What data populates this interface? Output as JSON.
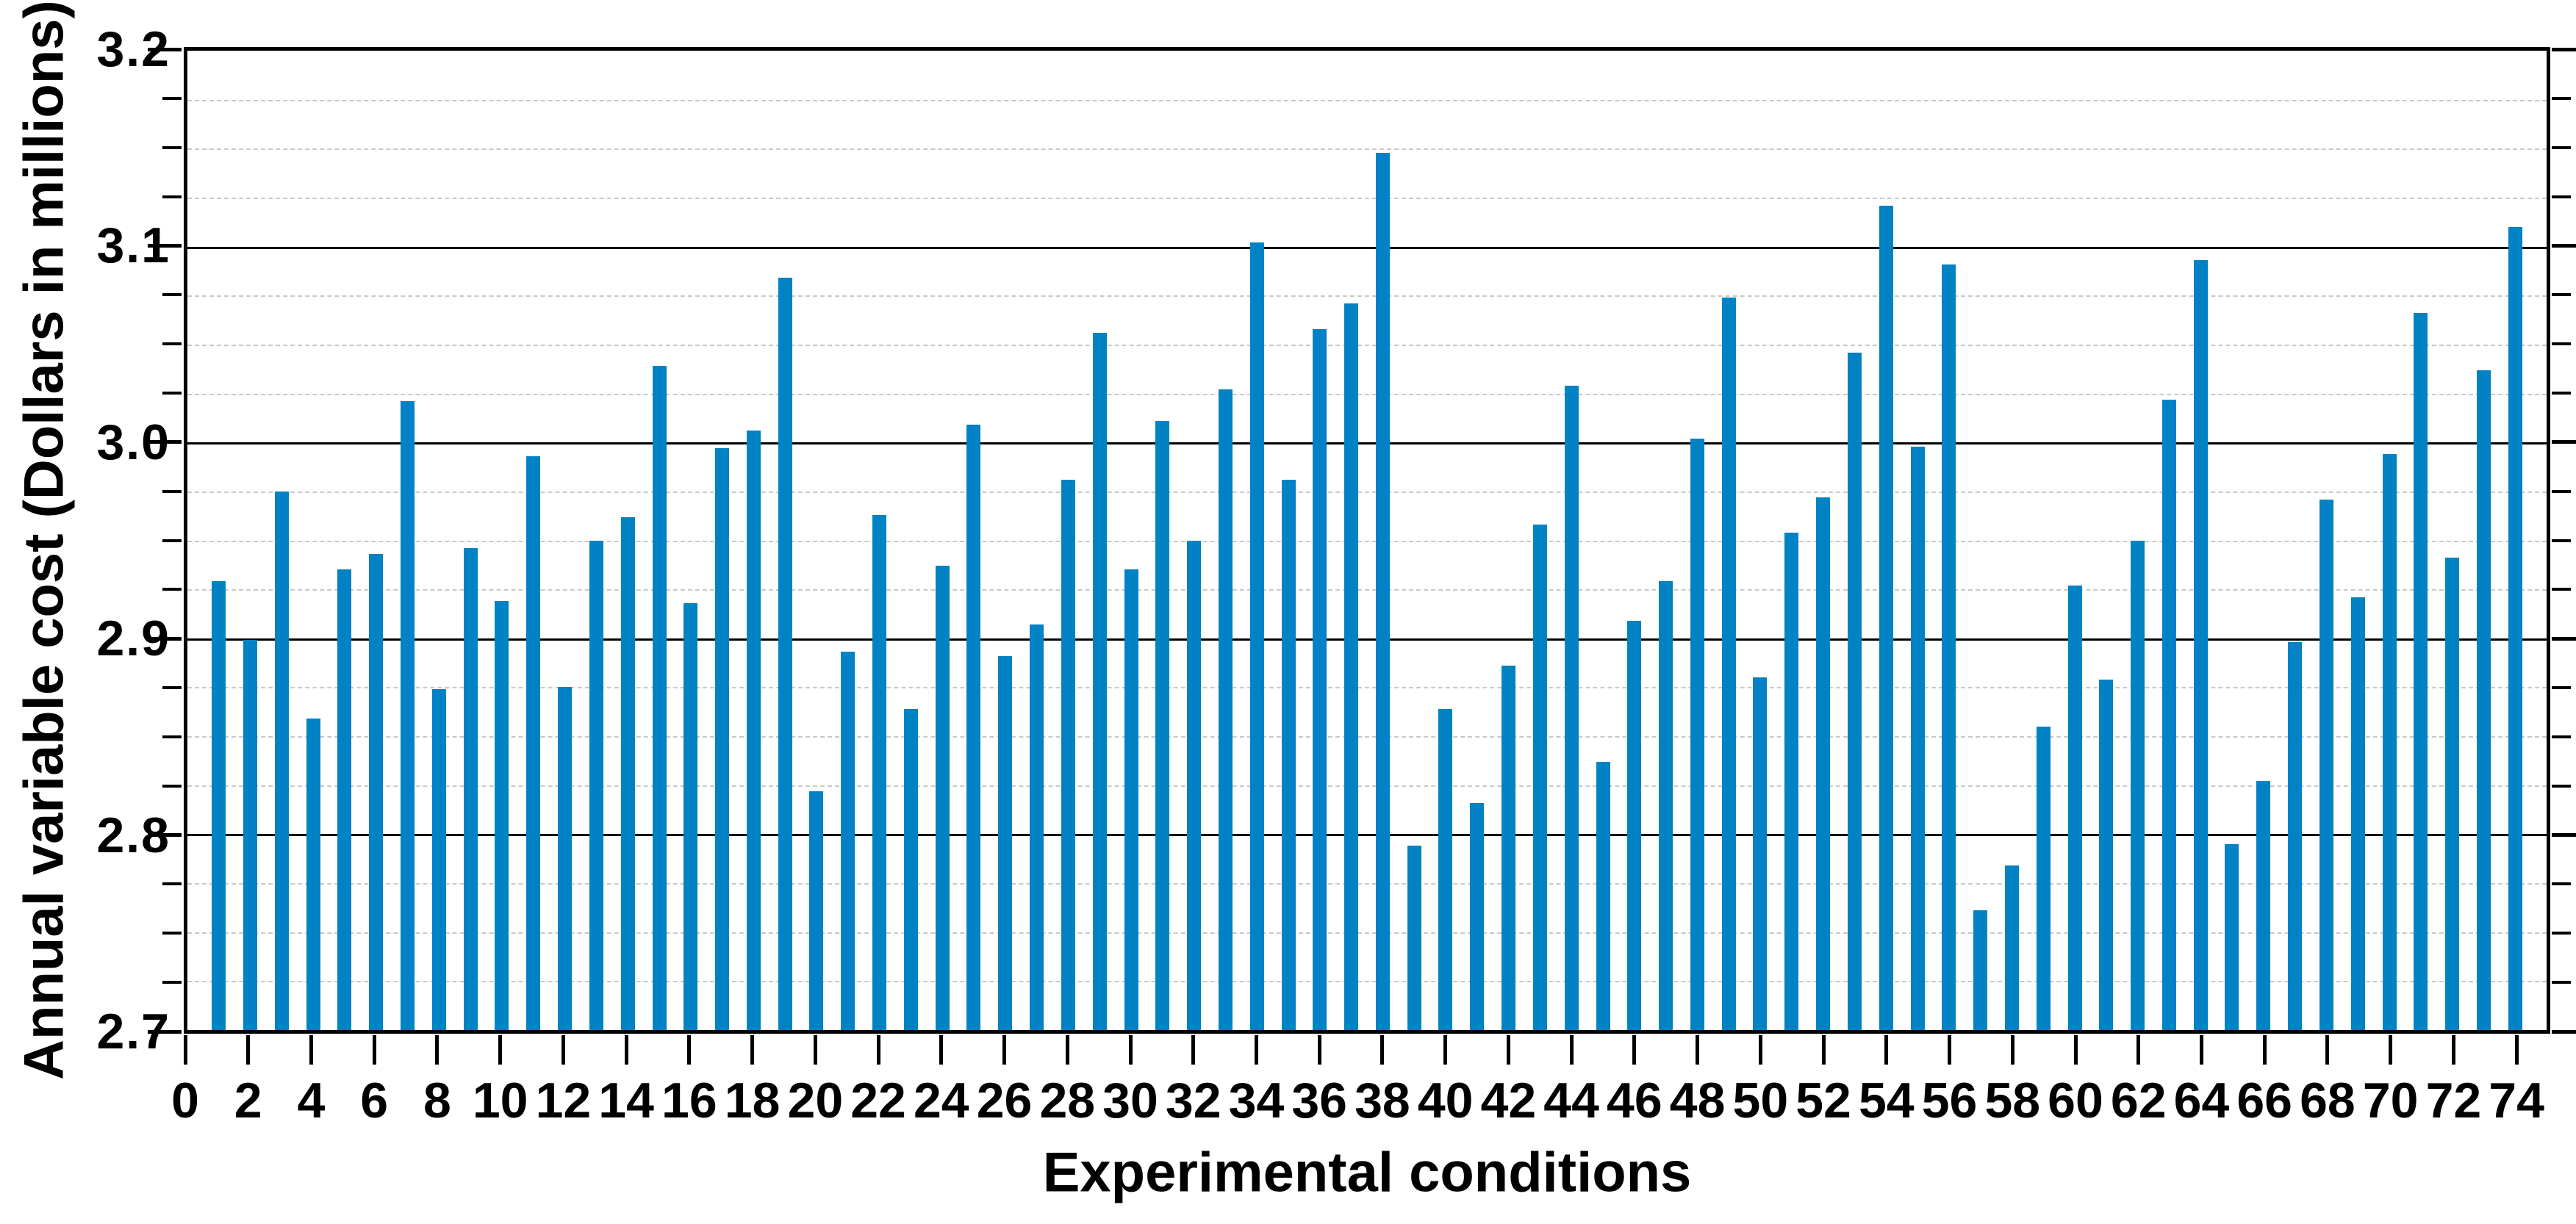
{
  "chart_data": {
    "type": "bar",
    "title": "",
    "xlabel": "Experimental conditions",
    "ylabel": "Annual variable cost (Dollars in millions)",
    "ylim": [
      2.7,
      3.2
    ],
    "xlim": [
      0,
      75
    ],
    "y_major_step": 0.1,
    "y_minor_step": 0.025,
    "x_label_step": 2,
    "grid": {
      "major": "solid-black",
      "minor": "dashed-gray",
      "legend": "none"
    },
    "x": [
      1,
      2,
      3,
      4,
      5,
      6,
      7,
      8,
      9,
      10,
      11,
      12,
      13,
      14,
      15,
      16,
      17,
      18,
      19,
      20,
      21,
      22,
      23,
      24,
      25,
      26,
      27,
      28,
      29,
      30,
      31,
      32,
      33,
      34,
      35,
      36,
      37,
      38,
      39,
      40,
      41,
      42,
      43,
      44,
      45,
      46,
      47,
      48,
      49,
      50,
      51,
      52,
      53,
      54,
      55,
      56,
      57,
      58,
      59,
      60,
      61,
      62,
      63,
      64,
      65,
      66,
      67,
      68,
      69,
      70,
      71,
      72,
      73,
      74
    ],
    "values": [
      2.929,
      2.899,
      2.975,
      2.859,
      2.935,
      2.943,
      3.021,
      2.874,
      2.946,
      2.919,
      2.993,
      2.875,
      2.95,
      2.962,
      3.039,
      2.918,
      2.997,
      3.006,
      3.084,
      2.822,
      2.893,
      2.963,
      2.864,
      2.937,
      3.009,
      2.891,
      2.907,
      2.981,
      3.056,
      2.935,
      3.011,
      2.95,
      3.027,
      3.102,
      2.981,
      3.058,
      3.071,
      3.148,
      2.794,
      2.864,
      2.816,
      2.886,
      2.958,
      3.029,
      2.837,
      2.909,
      2.929,
      3.002,
      3.074,
      2.88,
      2.954,
      2.972,
      3.046,
      3.121,
      2.998,
      3.091,
      2.761,
      2.784,
      2.855,
      2.927,
      2.879,
      2.95,
      3.022,
      3.093,
      2.795,
      2.827,
      2.898,
      2.971,
      2.921,
      2.994,
      3.066,
      2.941,
      3.037,
      3.11
    ],
    "y_ticks": [
      {
        "value": 3.2,
        "label": "3.2"
      },
      {
        "value": 3.1,
        "label": "3.1"
      },
      {
        "value": 3.0,
        "label": "3.0"
      },
      {
        "value": 2.9,
        "label": "2.9"
      },
      {
        "value": 2.8,
        "label": "2.8"
      },
      {
        "value": 2.7,
        "label": "2.7"
      }
    ],
    "x_ticks": [
      {
        "value": 0,
        "label": "0"
      },
      {
        "value": 2,
        "label": "2"
      },
      {
        "value": 4,
        "label": "4"
      },
      {
        "value": 6,
        "label": "6"
      },
      {
        "value": 8,
        "label": "8"
      },
      {
        "value": 10,
        "label": "10"
      },
      {
        "value": 12,
        "label": "12"
      },
      {
        "value": 14,
        "label": "14"
      },
      {
        "value": 16,
        "label": "16"
      },
      {
        "value": 18,
        "label": "18"
      },
      {
        "value": 20,
        "label": "20"
      },
      {
        "value": 22,
        "label": "22"
      },
      {
        "value": 24,
        "label": "24"
      },
      {
        "value": 26,
        "label": "26"
      },
      {
        "value": 28,
        "label": "28"
      },
      {
        "value": 30,
        "label": "30"
      },
      {
        "value": 32,
        "label": "32"
      },
      {
        "value": 34,
        "label": "34"
      },
      {
        "value": 36,
        "label": "36"
      },
      {
        "value": 38,
        "label": "38"
      },
      {
        "value": 40,
        "label": "40"
      },
      {
        "value": 42,
        "label": "42"
      },
      {
        "value": 44,
        "label": "44"
      },
      {
        "value": 46,
        "label": "46"
      },
      {
        "value": 48,
        "label": "48"
      },
      {
        "value": 50,
        "label": "50"
      },
      {
        "value": 52,
        "label": "52"
      },
      {
        "value": 54,
        "label": "54"
      },
      {
        "value": 56,
        "label": "56"
      },
      {
        "value": 58,
        "label": "58"
      },
      {
        "value": 60,
        "label": "60"
      },
      {
        "value": 62,
        "label": "62"
      },
      {
        "value": 64,
        "label": "64"
      },
      {
        "value": 66,
        "label": "66"
      },
      {
        "value": 68,
        "label": "68"
      },
      {
        "value": 70,
        "label": "70"
      },
      {
        "value": 72,
        "label": "72"
      },
      {
        "value": 74,
        "label": "74"
      }
    ],
    "colors": {
      "bar": "#0082c4",
      "axis": "#000000",
      "major_grid": "#000000",
      "minor_grid": "#c9c9c9",
      "text": "#000000",
      "background": "#ffffff"
    }
  }
}
